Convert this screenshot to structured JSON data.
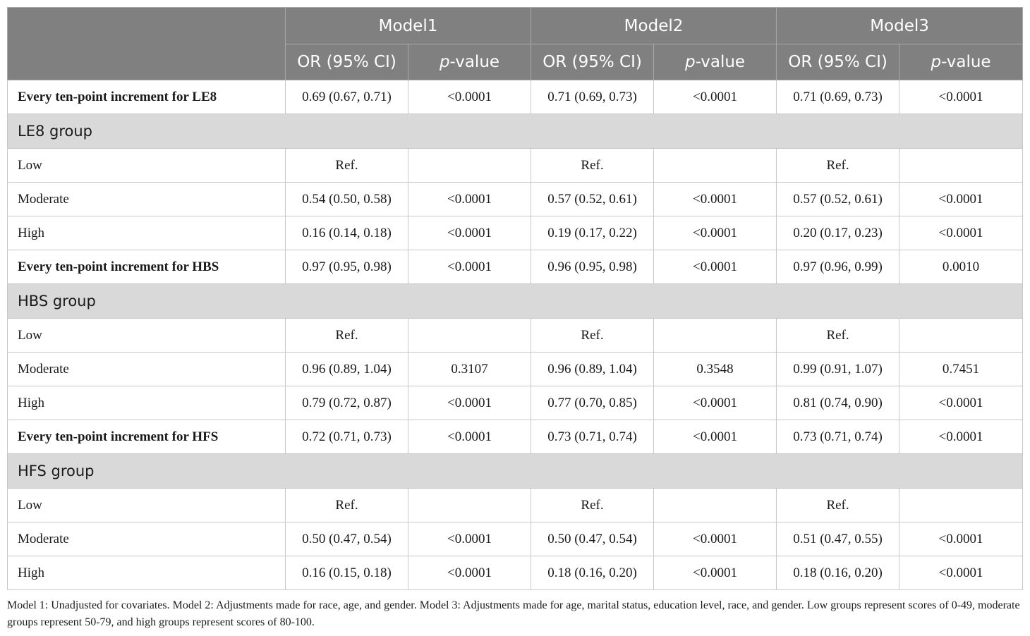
{
  "header": {
    "models": [
      "Model1",
      "Model2",
      "Model3"
    ],
    "or_label": "OR (95% CI)",
    "p_italic": "p",
    "p_suffix": "-value"
  },
  "rows": [
    {
      "type": "data",
      "bold": true,
      "label": "Every ten-point increment for LE8",
      "cells": [
        "0.69 (0.67, 0.71)",
        "<0.0001",
        "0.71 (0.69, 0.73)",
        "<0.0001",
        "0.71 (0.69, 0.73)",
        "<0.0001"
      ]
    },
    {
      "type": "group",
      "label": "LE8 group"
    },
    {
      "type": "data",
      "bold": false,
      "label": "Low",
      "cells": [
        "Ref.",
        "",
        "Ref.",
        "",
        "Ref.",
        ""
      ]
    },
    {
      "type": "data",
      "bold": false,
      "label": "Moderate",
      "cells": [
        "0.54 (0.50, 0.58)",
        "<0.0001",
        "0.57 (0.52, 0.61)",
        "<0.0001",
        "0.57 (0.52, 0.61)",
        "<0.0001"
      ]
    },
    {
      "type": "data",
      "bold": false,
      "label": "High",
      "cells": [
        "0.16 (0.14, 0.18)",
        "<0.0001",
        "0.19 (0.17, 0.22)",
        "<0.0001",
        "0.20 (0.17, 0.23)",
        "<0.0001"
      ]
    },
    {
      "type": "data",
      "bold": true,
      "label": "Every ten-point increment for HBS",
      "cells": [
        "0.97 (0.95, 0.98)",
        "<0.0001",
        "0.96 (0.95, 0.98)",
        "<0.0001",
        "0.97 (0.96, 0.99)",
        "0.0010"
      ]
    },
    {
      "type": "group",
      "label": "HBS group"
    },
    {
      "type": "data",
      "bold": false,
      "label": "Low",
      "cells": [
        "Ref.",
        "",
        "Ref.",
        "",
        "Ref.",
        ""
      ]
    },
    {
      "type": "data",
      "bold": false,
      "label": "Moderate",
      "cells": [
        "0.96 (0.89, 1.04)",
        "0.3107",
        "0.96 (0.89, 1.04)",
        "0.3548",
        "0.99 (0.91, 1.07)",
        "0.7451"
      ]
    },
    {
      "type": "data",
      "bold": false,
      "label": "High",
      "cells": [
        "0.79 (0.72, 0.87)",
        "<0.0001",
        "0.77 (0.70, 0.85)",
        "<0.0001",
        "0.81 (0.74, 0.90)",
        "<0.0001"
      ]
    },
    {
      "type": "data",
      "bold": true,
      "label": "Every ten-point increment for HFS",
      "cells": [
        "0.72 (0.71, 0.73)",
        "<0.0001",
        "0.73 (0.71, 0.74)",
        "<0.0001",
        "0.73 (0.71, 0.74)",
        "<0.0001"
      ]
    },
    {
      "type": "group",
      "label": "HFS group"
    },
    {
      "type": "data",
      "bold": false,
      "label": "Low",
      "cells": [
        "Ref.",
        "",
        "Ref.",
        "",
        "Ref.",
        ""
      ]
    },
    {
      "type": "data",
      "bold": false,
      "label": "Moderate",
      "cells": [
        "0.50 (0.47, 0.54)",
        "<0.0001",
        "0.50 (0.47, 0.54)",
        "<0.0001",
        "0.51 (0.47, 0.55)",
        "<0.0001"
      ]
    },
    {
      "type": "data",
      "bold": false,
      "label": "High",
      "cells": [
        "0.16 (0.15, 0.18)",
        "<0.0001",
        "0.18 (0.16, 0.20)",
        "<0.0001",
        "0.18 (0.16, 0.20)",
        "<0.0001"
      ]
    }
  ],
  "footnote": "Model 1: Unadjusted for covariates. Model 2: Adjustments made for race, age, and gender. Model 3: Adjustments made for age, marital status, education level, race, and gender. Low groups represent scores of 0-49, moderate groups represent 50-79, and high groups represent scores of 80-100.",
  "colors": {
    "header_bg": "#808080",
    "group_bg": "#d9d9d9",
    "border": "#c8c8c8"
  }
}
